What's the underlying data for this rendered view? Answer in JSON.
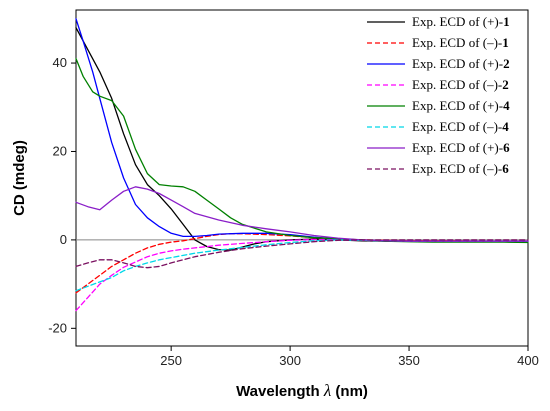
{
  "chart_data": {
    "type": "line",
    "title": "",
    "xlabel": "Wavelength",
    "xlabel_symbol": "λ",
    "xlabel_unit": "(nm)",
    "ylabel": "CD (mdeg)",
    "xlim": [
      210,
      400
    ],
    "ylim": [
      -24,
      52
    ],
    "xticks": [
      250,
      300,
      350,
      400
    ],
    "yticks": [
      -20,
      0,
      20,
      40
    ],
    "zero_line": true,
    "grid": false,
    "legend_position": "top-right",
    "series": [
      {
        "name_prefix": "Exp. ECD of (+)-",
        "compound": "1",
        "color": "#000000",
        "dash": "solid",
        "x": [
          210,
          215,
          220,
          225,
          230,
          235,
          240,
          245,
          250,
          255,
          260,
          265,
          270,
          275,
          280,
          285,
          290,
          300,
          310,
          320,
          330,
          340,
          350,
          360,
          370,
          380,
          390,
          400
        ],
        "y": [
          48,
          43,
          38,
          32,
          24,
          17,
          12.5,
          10,
          7,
          3.5,
          0,
          -1.5,
          -2.2,
          -2.3,
          -1.6,
          -0.9,
          -0.4,
          0,
          0.2,
          0,
          -0.2,
          -0.3,
          -0.3,
          -0.3,
          -0.3,
          -0.3,
          -0.3,
          -0.3
        ]
      },
      {
        "name_prefix": "Exp. ECD of (–)-",
        "compound": "1",
        "color": "#ff0000",
        "dash": "dashed",
        "x": [
          210,
          215,
          220,
          225,
          230,
          235,
          240,
          245,
          250,
          255,
          260,
          265,
          270,
          275,
          280,
          290,
          300,
          310,
          320,
          330,
          340,
          350,
          360,
          370,
          380,
          390,
          400
        ],
        "y": [
          -12,
          -10,
          -8,
          -6,
          -4.5,
          -3,
          -1.8,
          -1,
          -0.5,
          -0.2,
          0.3,
          0.8,
          1.2,
          1.4,
          1.4,
          1.2,
          0.9,
          0.5,
          0.2,
          0,
          -0.1,
          -0.2,
          -0.2,
          -0.2,
          -0.3,
          -0.3,
          -0.3
        ]
      },
      {
        "name_prefix": "Exp. ECD of (+)-",
        "compound": "2",
        "color": "#0000ff",
        "dash": "solid",
        "x": [
          210,
          213,
          217,
          220,
          225,
          230,
          235,
          240,
          245,
          250,
          255,
          260,
          265,
          270,
          280,
          290,
          300,
          310,
          320,
          330,
          340,
          350,
          360,
          370,
          380,
          390,
          400
        ],
        "y": [
          50,
          45,
          38,
          32,
          22,
          14,
          8,
          5,
          3,
          1.5,
          0.8,
          0.8,
          1,
          1.3,
          1.5,
          1.5,
          1.2,
          0.6,
          0.2,
          0,
          -0.2,
          -0.3,
          -0.3,
          -0.3,
          -0.3,
          -0.3,
          -0.3
        ]
      },
      {
        "name_prefix": "Exp. ECD of (–)-",
        "compound": "2",
        "color": "#ff00ff",
        "dash": "dashed",
        "x": [
          210,
          215,
          220,
          225,
          230,
          235,
          240,
          245,
          250,
          255,
          260,
          270,
          280,
          290,
          300,
          310,
          320,
          330,
          340,
          350,
          360,
          370,
          380,
          390,
          400
        ],
        "y": [
          -16,
          -13,
          -10,
          -8,
          -6.2,
          -5,
          -3.8,
          -3,
          -2.5,
          -2.1,
          -1.8,
          -1.2,
          -0.8,
          -0.4,
          -0.1,
          0.1,
          0,
          -0.1,
          -0.2,
          -0.2,
          -0.2,
          -0.2,
          -0.2,
          -0.2,
          -0.2
        ]
      },
      {
        "name_prefix": "Exp. ECD of (+)-",
        "compound": "4",
        "color": "#008000",
        "dash": "solid",
        "x": [
          210,
          213,
          217,
          220,
          225,
          230,
          235,
          240,
          245,
          250,
          255,
          260,
          265,
          270,
          275,
          280,
          290,
          300,
          310,
          320,
          330,
          340,
          350,
          360,
          370,
          380,
          390,
          400
        ],
        "y": [
          41,
          37,
          33.5,
          32.5,
          31.5,
          28,
          20.5,
          15,
          12.5,
          12.2,
          12,
          11,
          9,
          7,
          5,
          3.5,
          1.8,
          1,
          0.5,
          0.3,
          0,
          -0.3,
          -0.4,
          -0.5,
          -0.5,
          -0.5,
          -0.5,
          -0.6
        ]
      },
      {
        "name_prefix": "Exp. ECD of (–)-",
        "compound": "4",
        "color": "#00d8e8",
        "dash": "dashed",
        "x": [
          210,
          215,
          220,
          225,
          230,
          235,
          240,
          245,
          250,
          255,
          260,
          270,
          280,
          290,
          300,
          310,
          320,
          330,
          340,
          350,
          360,
          370,
          380,
          390,
          400
        ],
        "y": [
          -11.5,
          -10.5,
          -9.5,
          -8.5,
          -7,
          -6,
          -5.2,
          -4.5,
          -4,
          -3.5,
          -3,
          -2.3,
          -1.7,
          -1.1,
          -0.6,
          -0.2,
          0,
          -0.1,
          -0.2,
          -0.3,
          -0.3,
          -0.3,
          -0.3,
          -0.3,
          -0.3
        ]
      },
      {
        "name_prefix": "Exp. ECD of (+)-",
        "compound": "6",
        "color": "#8a1ec8",
        "dash": "solid",
        "x": [
          210,
          215,
          220,
          225,
          230,
          235,
          240,
          245,
          250,
          255,
          260,
          270,
          280,
          290,
          300,
          310,
          320,
          330,
          340,
          350,
          360,
          370,
          380,
          390,
          400
        ],
        "y": [
          8.5,
          7.5,
          6.8,
          9,
          11,
          12,
          11.5,
          10.5,
          9,
          7.5,
          6,
          4.5,
          3.3,
          2.5,
          1.8,
          1,
          0.4,
          0,
          -0.2,
          -0.3,
          -0.3,
          -0.3,
          -0.3,
          -0.3,
          -0.3
        ]
      },
      {
        "name_prefix": "Exp. ECD of (–)-",
        "compound": "6",
        "color": "#7a1060",
        "dash": "dashed",
        "x": [
          210,
          215,
          220,
          225,
          230,
          235,
          240,
          245,
          250,
          255,
          260,
          270,
          280,
          290,
          300,
          310,
          320,
          330,
          340,
          350,
          360,
          370,
          380,
          390,
          400
        ],
        "y": [
          -6,
          -5.2,
          -4.5,
          -4.5,
          -5.2,
          -6,
          -6.3,
          -6,
          -5.2,
          -4.5,
          -3.8,
          -2.8,
          -2,
          -1.4,
          -0.9,
          -0.4,
          -0.1,
          0,
          0,
          0,
          0,
          0,
          0,
          0,
          0
        ]
      }
    ]
  }
}
